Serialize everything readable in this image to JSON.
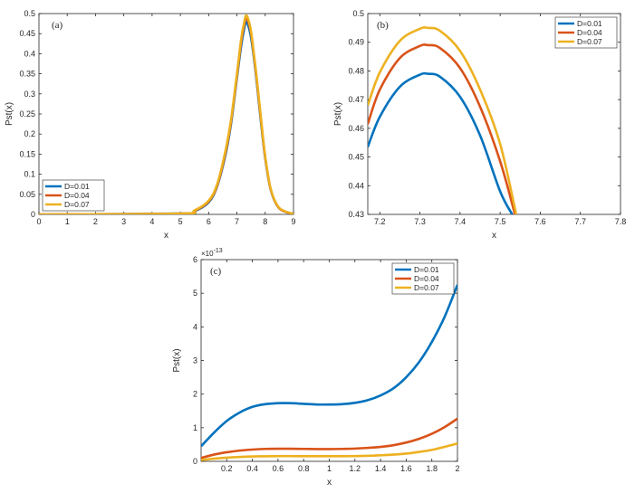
{
  "colors": {
    "D=0.01": "#0072bd",
    "D=0.04": "#d95319",
    "D=0.07": "#edb120"
  },
  "chart_data": [
    {
      "panel": "(a)",
      "type": "line",
      "xlabel": "x",
      "ylabel": "Pst(x)",
      "xlim": [
        0,
        9
      ],
      "ylim": [
        0,
        0.5
      ],
      "xticks": [
        "0",
        "1",
        "2",
        "3",
        "4",
        "5",
        "6",
        "7",
        "8",
        "9"
      ],
      "yticks": [
        "0",
        "0.05",
        "0.1",
        "0.15",
        "0.2",
        "0.25",
        "0.3",
        "0.35",
        "0.4",
        "0.45",
        "0.5"
      ],
      "legend_position": "bottom-left",
      "grid": false,
      "series": [
        {
          "name": "D=0.01",
          "x": [
            0,
            5.0,
            5.5,
            6.0,
            6.3,
            6.6,
            6.8,
            7.0,
            7.15,
            7.25,
            7.32,
            7.4,
            7.5,
            7.6,
            7.7,
            7.85,
            8.0,
            8.2,
            8.5,
            9.0
          ],
          "y": [
            0,
            0.002,
            0.008,
            0.03,
            0.07,
            0.15,
            0.23,
            0.34,
            0.42,
            0.46,
            0.479,
            0.47,
            0.44,
            0.39,
            0.33,
            0.23,
            0.14,
            0.06,
            0.015,
            0.001
          ]
        },
        {
          "name": "D=0.04",
          "x": [
            0,
            5.0,
            5.5,
            6.0,
            6.3,
            6.6,
            6.8,
            7.0,
            7.15,
            7.25,
            7.32,
            7.4,
            7.5,
            7.6,
            7.7,
            7.85,
            8.0,
            8.2,
            8.5,
            9.0
          ],
          "y": [
            0,
            0.002,
            0.009,
            0.032,
            0.072,
            0.155,
            0.235,
            0.345,
            0.43,
            0.47,
            0.489,
            0.48,
            0.45,
            0.395,
            0.335,
            0.235,
            0.142,
            0.061,
            0.015,
            0.001
          ]
        },
        {
          "name": "D=0.07",
          "x": [
            0,
            5.0,
            5.5,
            6.0,
            6.3,
            6.6,
            6.8,
            7.0,
            7.15,
            7.25,
            7.32,
            7.4,
            7.5,
            7.6,
            7.7,
            7.85,
            8.0,
            8.2,
            8.5,
            9.0
          ],
          "y": [
            0,
            0.002,
            0.01,
            0.034,
            0.075,
            0.16,
            0.24,
            0.35,
            0.437,
            0.476,
            0.495,
            0.486,
            0.455,
            0.4,
            0.34,
            0.24,
            0.145,
            0.062,
            0.016,
            0.001
          ]
        }
      ]
    },
    {
      "panel": "(b)",
      "type": "line",
      "xlabel": "x",
      "ylabel": "Pst(x)",
      "xlim": [
        7.17,
        7.8
      ],
      "ylim": [
        0.43,
        0.5
      ],
      "xticks": [
        "7.2",
        "7.3",
        "7.4",
        "7.5",
        "7.6",
        "7.7",
        "7.8"
      ],
      "yticks": [
        "0.43",
        "0.44",
        "0.45",
        "0.46",
        "0.47",
        "0.48",
        "0.49",
        "0.5"
      ],
      "legend_position": "top-right",
      "grid": false,
      "series": [
        {
          "name": "D=0.01",
          "x": [
            7.17,
            7.2,
            7.25,
            7.3,
            7.32,
            7.35,
            7.4,
            7.45,
            7.5,
            7.53
          ],
          "y": [
            0.4535,
            0.464,
            0.4745,
            0.4787,
            0.479,
            0.478,
            0.471,
            0.4575,
            0.438,
            0.43
          ]
        },
        {
          "name": "D=0.04",
          "x": [
            7.17,
            7.2,
            7.25,
            7.3,
            7.32,
            7.35,
            7.4,
            7.45,
            7.5,
            7.537
          ],
          "y": [
            0.4615,
            0.4735,
            0.4845,
            0.4887,
            0.489,
            0.488,
            0.481,
            0.4675,
            0.4485,
            0.43
          ]
        },
        {
          "name": "D=0.07",
          "x": [
            7.17,
            7.2,
            7.25,
            7.3,
            7.32,
            7.35,
            7.4,
            7.45,
            7.5,
            7.54
          ],
          "y": [
            0.468,
            0.4795,
            0.4905,
            0.4947,
            0.495,
            0.494,
            0.487,
            0.4735,
            0.4545,
            0.43
          ]
        }
      ]
    },
    {
      "panel": "(c)",
      "type": "line",
      "xlabel": "x",
      "ylabel": "Pst(x)",
      "exponent_label": "×10",
      "exponent_power": "-13",
      "xlim": [
        0,
        2
      ],
      "ylim": [
        0,
        6
      ],
      "xticks": [
        "0.2",
        "0.4",
        "0.6",
        "0.8",
        "1",
        "1.2",
        "1.4",
        "1.6",
        "1.8",
        "2"
      ],
      "yticks": [
        "0",
        "1",
        "2",
        "3",
        "4",
        "5",
        "6"
      ],
      "legend_position": "top-right",
      "grid": false,
      "series": [
        {
          "name": "D=0.01",
          "x": [
            0,
            0.1,
            0.2,
            0.3,
            0.4,
            0.5,
            0.6,
            0.7,
            0.8,
            0.9,
            1.0,
            1.1,
            1.2,
            1.3,
            1.4,
            1.5,
            1.6,
            1.7,
            1.8,
            1.9,
            2.0
          ],
          "y": [
            0.45,
            0.85,
            1.2,
            1.45,
            1.62,
            1.7,
            1.73,
            1.73,
            1.71,
            1.69,
            1.69,
            1.7,
            1.74,
            1.82,
            1.96,
            2.17,
            2.5,
            2.95,
            3.55,
            4.3,
            5.25
          ]
        },
        {
          "name": "D=0.04",
          "x": [
            0,
            0.1,
            0.2,
            0.3,
            0.4,
            0.5,
            0.6,
            0.7,
            0.8,
            0.9,
            1.0,
            1.1,
            1.2,
            1.3,
            1.4,
            1.5,
            1.6,
            1.7,
            1.8,
            1.9,
            2.0
          ],
          "y": [
            0.1,
            0.2,
            0.27,
            0.32,
            0.35,
            0.37,
            0.375,
            0.375,
            0.37,
            0.365,
            0.365,
            0.37,
            0.38,
            0.4,
            0.43,
            0.48,
            0.56,
            0.67,
            0.82,
            1.02,
            1.27
          ]
        },
        {
          "name": "D=0.07",
          "x": [
            0,
            0.1,
            0.2,
            0.3,
            0.4,
            0.5,
            0.6,
            0.7,
            0.8,
            0.9,
            1.0,
            1.1,
            1.2,
            1.3,
            1.4,
            1.5,
            1.6,
            1.7,
            1.8,
            1.9,
            2.0
          ],
          "y": [
            0.04,
            0.08,
            0.11,
            0.13,
            0.145,
            0.15,
            0.155,
            0.155,
            0.153,
            0.152,
            0.152,
            0.153,
            0.157,
            0.165,
            0.18,
            0.2,
            0.23,
            0.28,
            0.34,
            0.43,
            0.53
          ]
        }
      ]
    }
  ]
}
